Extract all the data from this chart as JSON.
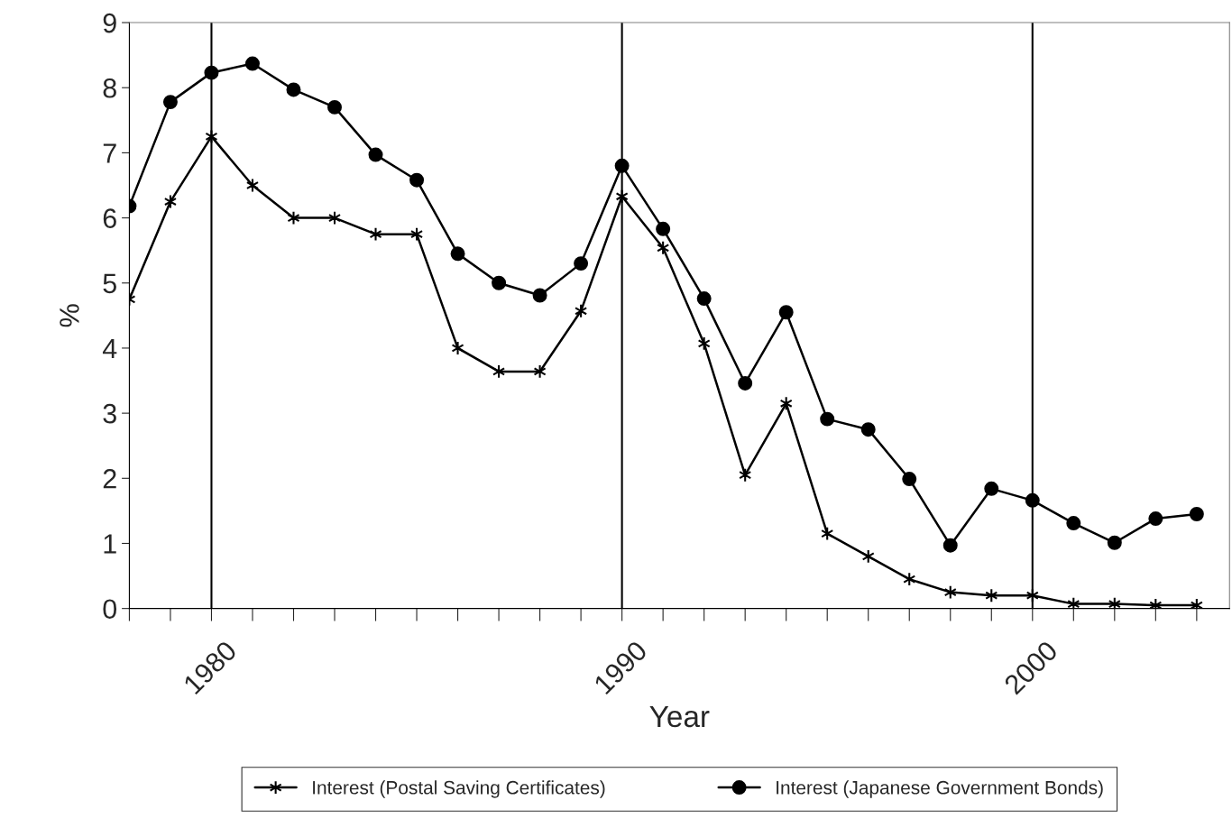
{
  "chart_data": {
    "type": "line",
    "xlabel": "Year",
    "ylabel": "%",
    "x": [
      1978,
      1979,
      1980,
      1981,
      1982,
      1983,
      1984,
      1985,
      1986,
      1987,
      1988,
      1989,
      1990,
      1991,
      1992,
      1993,
      1994,
      1995,
      1996,
      1997,
      1998,
      1999,
      2000,
      2001,
      2002,
      2003,
      2004
    ],
    "series": [
      {
        "name": "Interest (Postal Saving Certificates)",
        "color": "#000000",
        "marker": "cross",
        "values": [
          4.75,
          6.25,
          7.25,
          6.5,
          6.0,
          6.0,
          5.75,
          5.75,
          4.0,
          3.64,
          3.64,
          4.57,
          6.33,
          5.54,
          4.07,
          2.05,
          3.15,
          1.15,
          0.8,
          0.45,
          0.25,
          0.2,
          0.2,
          0.07,
          0.07,
          0.05,
          0.05
        ]
      },
      {
        "name": "Interest (Japanese Government Bonds)",
        "color": "#000000",
        "marker": "circle",
        "values": [
          6.18,
          7.78,
          8.23,
          8.37,
          7.97,
          7.7,
          6.97,
          6.58,
          5.45,
          5.0,
          4.81,
          5.3,
          6.8,
          5.83,
          4.76,
          3.46,
          4.55,
          2.91,
          2.75,
          1.99,
          0.97,
          1.84,
          1.66,
          1.31,
          1.01,
          1.38,
          1.45
        ]
      }
    ],
    "xlim": [
      1978,
      2004.8
    ],
    "ylim": [
      0,
      9
    ],
    "yticks": [
      0,
      1,
      2,
      3,
      4,
      5,
      6,
      7,
      8,
      9
    ],
    "xticks": [
      {
        "value": 1978,
        "label": null
      },
      {
        "value": 1979,
        "label": null
      },
      1980,
      {
        "value": 1981,
        "label": null
      },
      {
        "value": 1982,
        "label": null
      },
      {
        "value": 1983,
        "label": null
      },
      {
        "value": 1984,
        "label": null
      },
      {
        "value": 1985,
        "label": null
      },
      {
        "value": 1986,
        "label": null
      },
      {
        "value": 1987,
        "label": null
      },
      {
        "value": 1988,
        "label": null
      },
      {
        "value": 1989,
        "label": null
      },
      1990,
      {
        "value": 1991,
        "label": null
      },
      {
        "value": 1992,
        "label": null
      },
      {
        "value": 1993,
        "label": null
      },
      {
        "value": 1994,
        "label": null
      },
      {
        "value": 1995,
        "label": null
      },
      {
        "value": 1996,
        "label": null
      },
      {
        "value": 1997,
        "label": null
      },
      {
        "value": 1998,
        "label": null
      },
      {
        "value": 1999,
        "label": null
      },
      2000,
      {
        "value": 2001,
        "label": null
      },
      {
        "value": 2002,
        "label": null
      },
      {
        "value": 2003,
        "label": null
      },
      {
        "value": 2004,
        "label": null
      }
    ],
    "ref_lines": [
      {
        "axis": "x",
        "value": 1980
      },
      {
        "axis": "x",
        "value": 1990
      },
      {
        "axis": "x",
        "value": 2000
      }
    ],
    "grid": false,
    "legend": "bottom",
    "line_style": "solid"
  }
}
